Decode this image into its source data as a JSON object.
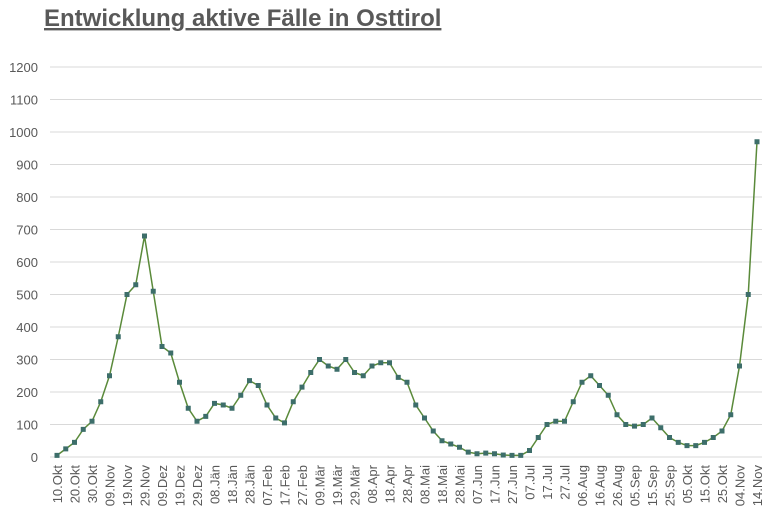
{
  "chart_data": {
    "type": "line",
    "title": "Entwicklung aktive Fälle in Osttirol",
    "categories": [
      "10.Okt",
      null,
      "20.Okt",
      null,
      "30.Okt",
      null,
      "09.Nov",
      null,
      "19.Nov",
      null,
      "29.Nov",
      null,
      "09.Dez",
      null,
      "19.Dez",
      null,
      "29.Dez",
      null,
      "08.Jän",
      null,
      "18.Jän",
      null,
      "28.Jän",
      null,
      "07.Feb",
      null,
      "17.Feb",
      null,
      "27.Feb",
      null,
      "09.Mär",
      null,
      "19.Mär",
      null,
      "29.Mär",
      null,
      "08.Apr",
      null,
      "18.Apr",
      null,
      "28.Apr",
      null,
      "08.Mai",
      null,
      "18.Mai",
      null,
      "28.Mai",
      null,
      "07.Jun",
      null,
      "17.Jun",
      null,
      "27.Jun",
      null,
      "07.Jul",
      null,
      "17.Jul",
      null,
      "27.Jul",
      null,
      "06.Aug",
      null,
      "16.Aug",
      null,
      "26.Aug",
      null,
      "05.Sep",
      null,
      "15.Sep",
      null,
      "25.Sep",
      null,
      "05.Okt",
      null,
      "15.Okt",
      null,
      "25.Okt",
      null,
      "04.Nov",
      null,
      "14.Nov"
    ],
    "values": [
      5,
      25,
      45,
      85,
      110,
      170,
      250,
      370,
      500,
      530,
      680,
      510,
      340,
      320,
      230,
      150,
      110,
      125,
      165,
      160,
      150,
      190,
      235,
      220,
      160,
      120,
      105,
      170,
      215,
      260,
      300,
      280,
      270,
      300,
      260,
      250,
      280,
      290,
      290,
      245,
      230,
      160,
      120,
      80,
      50,
      40,
      30,
      15,
      10,
      12,
      10,
      6,
      5,
      5,
      20,
      60,
      100,
      110,
      110,
      170,
      230,
      250,
      220,
      190,
      130,
      100,
      95,
      100,
      120,
      90,
      60,
      45,
      35,
      35,
      45,
      60,
      80,
      130,
      280,
      500,
      970
    ],
    "color": "#5a8a3a",
    "marker_color": "#3d6e6a",
    "ylim": [
      0,
      1200
    ],
    "yticks": [
      0,
      100,
      200,
      300,
      400,
      500,
      600,
      700,
      800,
      900,
      1000,
      1100,
      1200
    ],
    "grid": true
  }
}
